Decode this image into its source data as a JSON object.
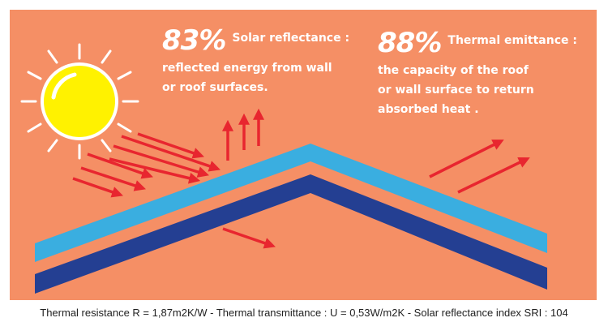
{
  "solar_reflectance": {
    "value": "83%",
    "title": "Solar reflectance :",
    "description": "reflected energy from wall\nor roof surfaces."
  },
  "thermal_emittance": {
    "value": "88%",
    "title": "Thermal emittance :",
    "description": "the capacity of the roof\nor wall surface to return\nabsorbed heat ."
  },
  "caption": "Thermal resistance R = 1,87m2K/W - Thermal transmittance : U = 0,53W/m2K - Solar reflectance index SRI : 104",
  "colors": {
    "background": "#f58f65",
    "roof_top": "#3aaee0",
    "roof_bottom": "#243f92",
    "arrow": "#e8262f",
    "sun": "#fff200",
    "text": "#ffffff"
  },
  "icons": [
    "sun-icon",
    "arrow-icon"
  ]
}
